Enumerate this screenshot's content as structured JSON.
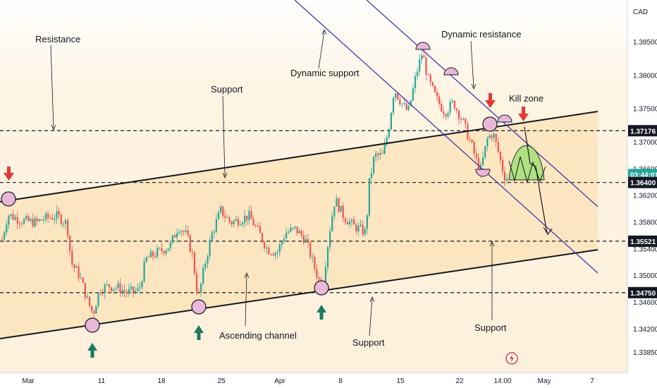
{
  "chart_data": {
    "type": "candlestick",
    "currency": "CAD",
    "price_axis": {
      "min": 1.334,
      "max": 1.389,
      "ticks": [
        "1.38500",
        "1.38000",
        "1.37500",
        "1.37000",
        "1.36600",
        "1.36200",
        "1.35800",
        "1.35400",
        "1.35000",
        "1.34600",
        "1.34200",
        "1.33850"
      ],
      "tick_values": [
        1.385,
        1.38,
        1.375,
        1.37,
        1.366,
        1.362,
        1.358,
        1.354,
        1.35,
        1.346,
        1.342,
        1.3385
      ]
    },
    "time_axis": {
      "ticks": [
        "Mar",
        "11",
        "18",
        "25",
        "Apr",
        "8",
        "15",
        "22",
        "14:00",
        "May",
        "7"
      ]
    },
    "price_tags": [
      {
        "label": "1.37176",
        "value": 1.37176,
        "style": "dark"
      },
      {
        "label": "03:44:01",
        "value": 1.3652,
        "style": "teal"
      },
      {
        "label": "1.36400",
        "value": 1.364,
        "style": "dark"
      },
      {
        "label": "1.35521",
        "value": 1.35521,
        "style": "dark"
      },
      {
        "label": "1.34750",
        "value": 1.3475,
        "style": "dark"
      }
    ],
    "horizontal_levels": [
      1.37176,
      1.364,
      1.35521,
      1.3475
    ],
    "annotations": [
      "Resistance",
      "Support",
      "Dynamic support",
      "Dynamic resistance",
      "Kill zone",
      "Ascending channel",
      "Support",
      "Support"
    ],
    "colors": {
      "up": "#26a69a",
      "down": "#ef5350",
      "channel_fill": "#fbe7c6",
      "marker_fill": "#e1bee7",
      "arrow_up": "#1b7a62",
      "arrow_down": "#e53935",
      "channel_line": "#3f3ab0"
    }
  },
  "header": {
    "currency": "CAD"
  }
}
